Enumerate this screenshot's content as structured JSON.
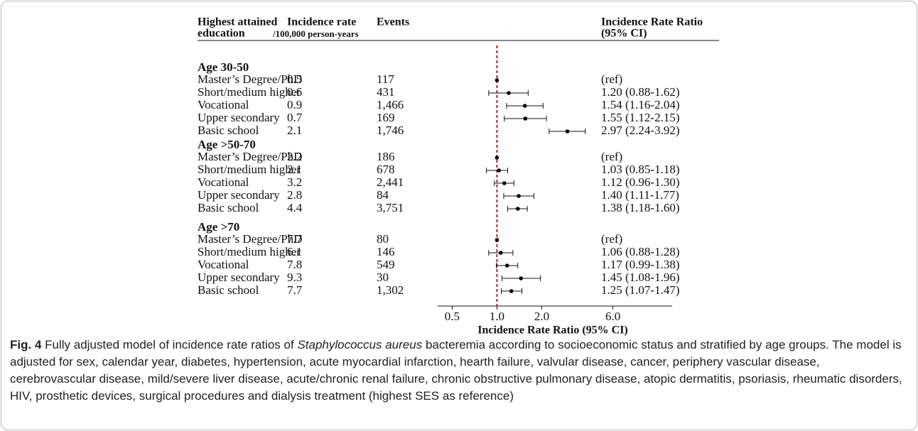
{
  "chart_data": {
    "type": "forest",
    "headers": {
      "education": [
        "Highest attained",
        "education"
      ],
      "incidence": [
        "Incidence rate",
        "/100,000 person-years"
      ],
      "events": "Events",
      "irr": [
        "Incidence Rate Ratio",
        "(95% CI)"
      ]
    },
    "x_label": "Incidence Rate Ratio (95% CI)",
    "log_x": true,
    "reference_line": 1,
    "reference_color": "#b22222",
    "xlim": [
      0.4,
      15
    ],
    "xticks": [
      0.5,
      {
        "value": 1,
        "label": "1.0"
      },
      {
        "value": 2,
        "label": "2.0"
      },
      {
        "value": 6,
        "label": "6.0"
      }
    ],
    "groups": [
      {
        "title": "Age 30-50",
        "rows": [
          {
            "label": "Master’s Degree/PhD",
            "incidence": "0.5",
            "events": "117",
            "value": 1,
            "ci": [
              null,
              null
            ],
            "value_label": "(ref)"
          },
          {
            "label": "Short/medium higher",
            "incidence": "0.6",
            "events": "431",
            "value": 1.2,
            "ci": [
              0.88,
              1.62
            ],
            "value_label": "1.20 (0.88-1.62)"
          },
          {
            "label": "Vocational",
            "incidence": "0.9",
            "events": "1,466",
            "value": 1.54,
            "ci": [
              1.16,
              2.04
            ],
            "value_label": "1.54 (1.16-2.04)"
          },
          {
            "label": "Upper secondary",
            "incidence": "0.7",
            "events": "169",
            "value": 1.55,
            "ci": [
              1.12,
              2.15
            ],
            "value_label": "1.55 (1.12-2.15)"
          },
          {
            "label": "Basic school",
            "incidence": "2.1",
            "events": "1,746",
            "value": 2.97,
            "ci": [
              2.24,
              3.92
            ],
            "value_label": "2.97 (2.24-3.92)"
          }
        ]
      },
      {
        "title": "Age >50-70",
        "rows": [
          {
            "label": "Master’s Degree/PhD",
            "incidence": "2.2",
            "events": "186",
            "value": 1,
            "ci": [
              null,
              null
            ],
            "value_label": "(ref)"
          },
          {
            "label": "Short/medium higher",
            "incidence": "2.1",
            "events": "678",
            "value": 1.03,
            "ci": [
              0.85,
              1.18
            ],
            "value_label": "1.03 (0.85-1.18)"
          },
          {
            "label": "Vocational",
            "incidence": "3.2",
            "events": "2,441",
            "value": 1.12,
            "ci": [
              0.96,
              1.3
            ],
            "value_label": "1.12 (0.96-1.30)"
          },
          {
            "label": "Upper secondary",
            "incidence": "2.8",
            "events": "84",
            "value": 1.4,
            "ci": [
              1.11,
              1.77
            ],
            "value_label": "1.40 (1.11-1.77)"
          },
          {
            "label": "Basic school",
            "incidence": "4.4",
            "events": "3,751",
            "value": 1.38,
            "ci": [
              1.18,
              1.6
            ],
            "value_label": "1.38 (1.18-1.60)"
          }
        ]
      },
      {
        "title": "Age >70",
        "rows": [
          {
            "label": "Master’s Degree/PhD",
            "incidence": "7.7",
            "events": "80",
            "value": 1,
            "ci": [
              null,
              null
            ],
            "value_label": "(ref)"
          },
          {
            "label": "Short/medium higher",
            "incidence": "6.1",
            "events": "146",
            "value": 1.06,
            "ci": [
              0.88,
              1.28
            ],
            "value_label": "1.06 (0.88-1.28)"
          },
          {
            "label": "Vocational",
            "incidence": "7.8",
            "events": "549",
            "value": 1.17,
            "ci": [
              0.99,
              1.38
            ],
            "value_label": "1.17 (0.99-1.38)"
          },
          {
            "label": "Upper secondary",
            "incidence": "9.3",
            "events": "30",
            "value": 1.45,
            "ci": [
              1.08,
              1.96
            ],
            "value_label": "1.45 (1.08-1.96)"
          },
          {
            "label": "Basic school",
            "incidence": "7.7",
            "events": "1,302",
            "value": 1.25,
            "ci": [
              1.07,
              1.47
            ],
            "value_label": "1.25 (1.07-1.47)"
          }
        ]
      }
    ]
  },
  "caption": {
    "label": "Fig. 4",
    "text_before": " Fully adjusted model of incidence rate ratios of ",
    "italic": "Staphylococcus aureus",
    "text_after": " bacteremia according to socioeconomic status and stratified by age groups. The model is adjusted for sex, calendar year, diabetes, hypertension, acute myocardial infarction, hearth failure, valvular disease, cancer, periphery vascular disease, cerebrovascular disease, mild/severe liver disease, acute/chronic renal failure, chronic obstructive pulmonary disease, atopic dermatitis, psoriasis, rheumatic disorders, HIV, prosthetic devices, surgical procedures and dialysis treatment (highest SES as reference)"
  }
}
